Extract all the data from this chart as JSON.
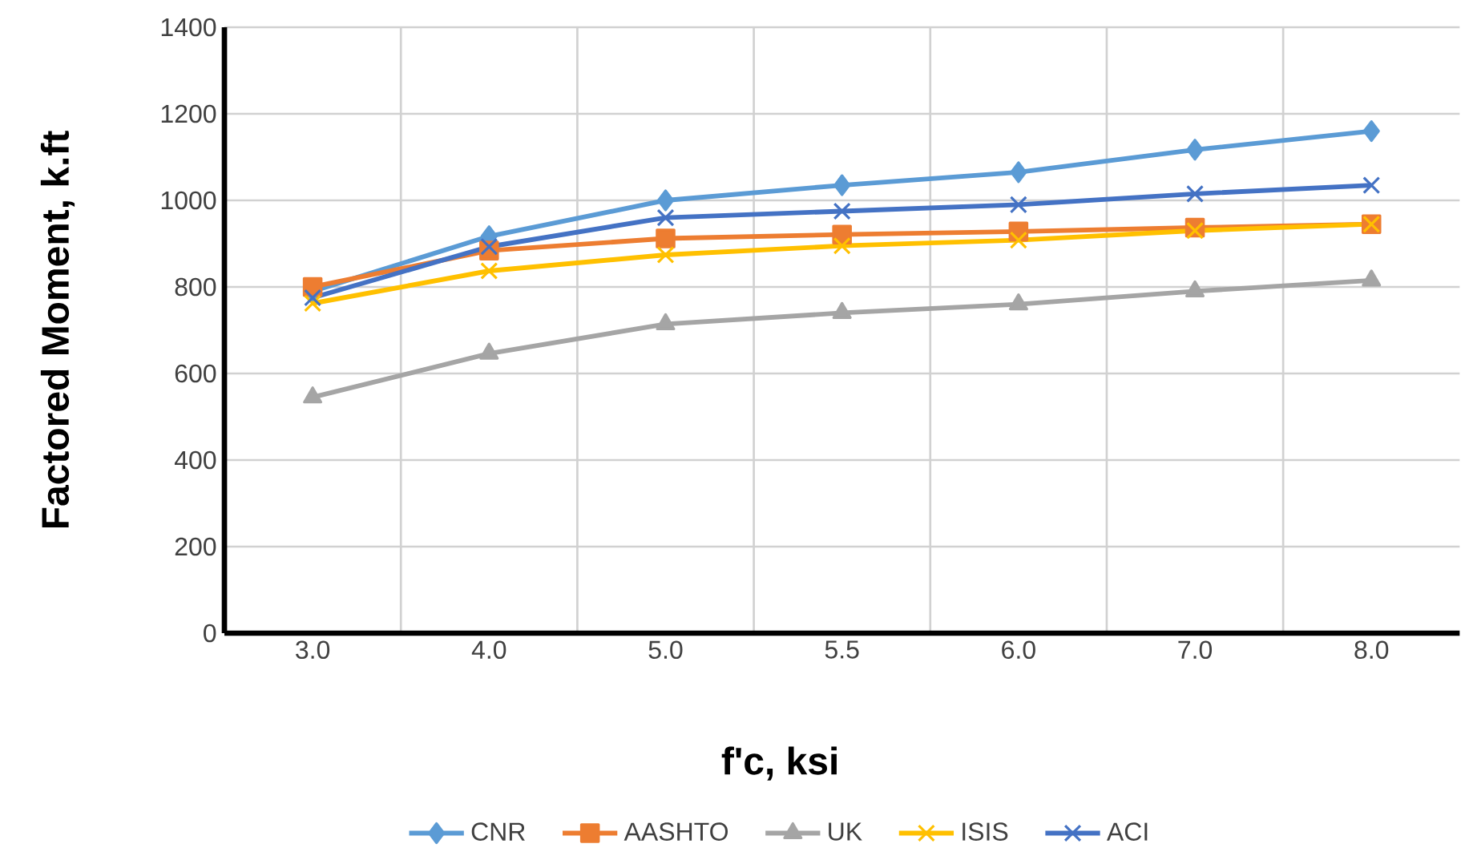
{
  "chart_data": {
    "type": "line",
    "xlabel": "f'c, ksi",
    "ylabel": "Factored Moment, k.ft",
    "categories": [
      "3.0",
      "4.0",
      "5.0",
      "5.5",
      "6.0",
      "7.0",
      "8.0"
    ],
    "ylim": [
      0,
      1400
    ],
    "yticks": [
      0,
      200,
      400,
      600,
      800,
      1000,
      1200,
      1400
    ],
    "grid": true,
    "legend": "bottom",
    "series": [
      {
        "name": "CNR",
        "color": "#5b9bd5",
        "marker": "diamond",
        "values": [
          790,
          917,
          1000,
          1035,
          1065,
          1117,
          1160
        ]
      },
      {
        "name": "AASHTO",
        "color": "#ed7d31",
        "marker": "square",
        "values": [
          800,
          884,
          912,
          921,
          928,
          937,
          945
        ]
      },
      {
        "name": "UK",
        "color": "#a5a5a5",
        "marker": "triangle",
        "values": [
          545,
          646,
          714,
          740,
          760,
          790,
          815
        ]
      },
      {
        "name": "ISIS",
        "color": "#ffc000",
        "marker": "cross",
        "values": [
          762,
          837,
          874,
          895,
          908,
          930,
          945
        ]
      },
      {
        "name": "ACI",
        "color": "#4472c4",
        "marker": "cross",
        "values": [
          775,
          893,
          960,
          975,
          990,
          1015,
          1035
        ]
      }
    ]
  }
}
